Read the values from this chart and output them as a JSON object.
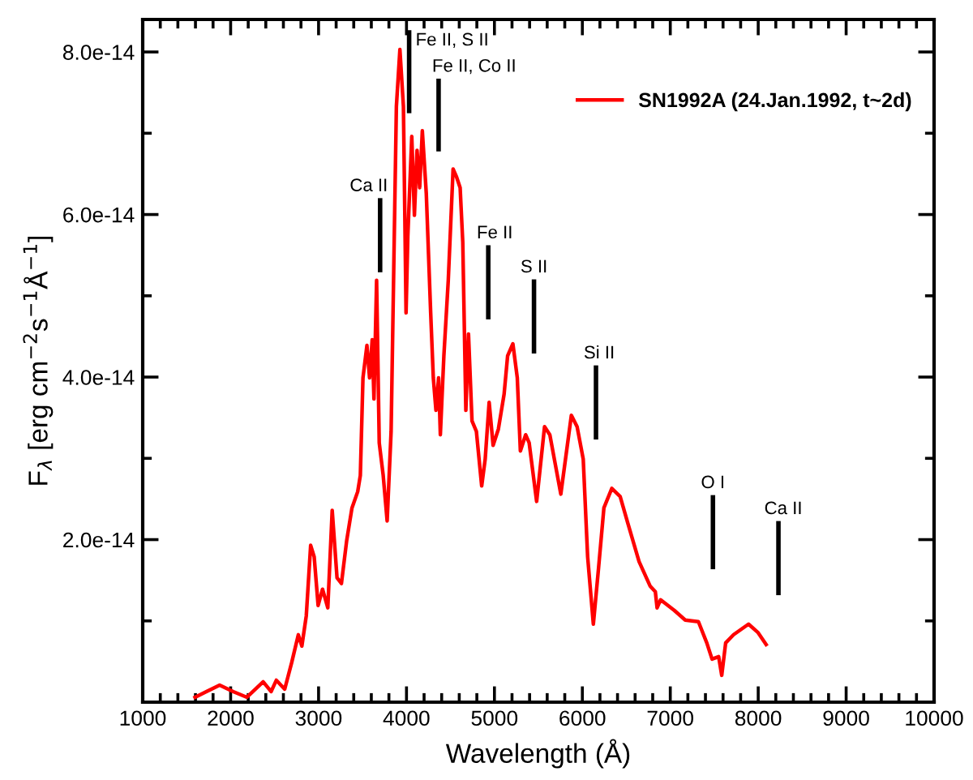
{
  "chart_data": {
    "type": "line",
    "xlabel": "Wavelength (Å)",
    "ylabel": "F$_{λ}$ [erg cm$^{−2}$s$^{−1}$Å$^{−1}$]",
    "xlim": [
      1000,
      10000
    ],
    "ylim": [
      0,
      8.4e-14
    ],
    "xticks": [
      1000,
      {
        "value": 1200,
        "label": null
      },
      {
        "value": 1400,
        "label": null
      },
      {
        "value": 1600,
        "label": null
      },
      {
        "value": 1800,
        "label": null
      },
      2000,
      {
        "value": 2200,
        "label": null
      },
      {
        "value": 2400,
        "label": null
      },
      {
        "value": 2600,
        "label": null
      },
      {
        "value": 2800,
        "label": null
      },
      3000,
      {
        "value": 3200,
        "label": null
      },
      {
        "value": 3400,
        "label": null
      },
      {
        "value": 3600,
        "label": null
      },
      {
        "value": 3800,
        "label": null
      },
      4000,
      {
        "value": 4200,
        "label": null
      },
      {
        "value": 4400,
        "label": null
      },
      {
        "value": 4600,
        "label": null
      },
      {
        "value": 4800,
        "label": null
      },
      5000,
      {
        "value": 5200,
        "label": null
      },
      {
        "value": 5400,
        "label": null
      },
      {
        "value": 5600,
        "label": null
      },
      {
        "value": 5800,
        "label": null
      },
      6000,
      {
        "value": 6200,
        "label": null
      },
      {
        "value": 6400,
        "label": null
      },
      {
        "value": 6600,
        "label": null
      },
      {
        "value": 6800,
        "label": null
      },
      7000,
      {
        "value": 7200,
        "label": null
      },
      {
        "value": 7400,
        "label": null
      },
      {
        "value": 7600,
        "label": null
      },
      {
        "value": 7800,
        "label": null
      },
      8000,
      {
        "value": 8200,
        "label": null
      },
      {
        "value": 8400,
        "label": null
      },
      {
        "value": 8600,
        "label": null
      },
      {
        "value": 8800,
        "label": null
      },
      9000,
      {
        "value": 9200,
        "label": null
      },
      {
        "value": 9400,
        "label": null
      },
      {
        "value": 9600,
        "label": null
      },
      {
        "value": 9800,
        "label": null
      },
      10000
    ],
    "yticks": [
      {
        "value": 1e-14,
        "label": null
      },
      {
        "value": 2e-14,
        "label": "2.0e-14"
      },
      {
        "value": 3e-14,
        "label": null
      },
      {
        "value": 4e-14,
        "label": "4.0e-14"
      },
      {
        "value": 5e-14,
        "label": null
      },
      {
        "value": 6e-14,
        "label": "6.0e-14"
      },
      {
        "value": 7e-14,
        "label": null
      },
      {
        "value": 8e-14,
        "label": "8.0e-14"
      }
    ],
    "grid": false,
    "legend": "top right",
    "line_style": "solid",
    "marker": "none",
    "series": [
      {
        "name": "SN1992A (24.Jan.1992, t~2d)",
        "color": "#ff0000",
        "x": [
          1595,
          1875,
          2030,
          2185,
          2370,
          2460,
          2520,
          2615,
          2695,
          2770,
          2810,
          2860,
          2910,
          2950,
          2995,
          3045,
          3105,
          3155,
          3210,
          3260,
          3320,
          3380,
          3445,
          3475,
          3505,
          3550,
          3580,
          3610,
          3630,
          3660,
          3690,
          3735,
          3780,
          3825,
          3855,
          3885,
          3925,
          3965,
          3995,
          4015,
          4060,
          4090,
          4120,
          4150,
          4180,
          4225,
          4275,
          4305,
          4335,
          4365,
          4385,
          4425,
          4475,
          4530,
          4570,
          4610,
          4640,
          4675,
          4705,
          4745,
          4795,
          4855,
          4895,
          4940,
          4985,
          5045,
          5110,
          5150,
          5210,
          5260,
          5295,
          5355,
          5395,
          5480,
          5570,
          5630,
          5755,
          5875,
          5940,
          6010,
          6060,
          6125,
          6185,
          6245,
          6335,
          6430,
          6520,
          6645,
          6770,
          6830,
          6850,
          6890,
          7045,
          7170,
          7320,
          7415,
          7475,
          7550,
          7585,
          7630,
          7720,
          7890,
          7995,
          8090
        ],
        "values": [
          6e-16,
          2.1e-15,
          1.3e-15,
          6e-16,
          2.5e-15,
          1.3e-15,
          2.7e-15,
          1.6e-15,
          4.9e-15,
          8.3e-15,
          6.9e-15,
          1.06e-14,
          1.93e-14,
          1.79e-14,
          1.19e-14,
          1.39e-14,
          1.16e-14,
          2.36e-14,
          1.53e-14,
          1.46e-14,
          1.99e-14,
          2.39e-14,
          2.59e-14,
          2.79e-14,
          3.99e-14,
          4.39e-14,
          3.99e-14,
          4.46e-14,
          3.73e-14,
          5.19e-14,
          3.19e-14,
          2.79e-14,
          2.23e-14,
          3.33e-14,
          5.33e-14,
          7.33e-14,
          8.03e-14,
          7.33e-14,
          4.79e-14,
          5.73e-14,
          6.96e-14,
          5.99e-14,
          6.79e-14,
          6.33e-14,
          7.03e-14,
          6.26e-14,
          4.79e-14,
          3.99e-14,
          3.59e-14,
          3.99e-14,
          3.29e-14,
          4.26e-14,
          5.19e-14,
          6.56e-14,
          6.46e-14,
          6.33e-14,
          5.66e-14,
          3.59e-14,
          4.53e-14,
          3.46e-14,
          3.33e-14,
          2.66e-14,
          2.99e-14,
          3.69e-14,
          3.16e-14,
          3.36e-14,
          3.79e-14,
          4.26e-14,
          4.41e-14,
          3.99e-14,
          3.09e-14,
          3.29e-14,
          3.19e-14,
          2.47e-14,
          3.39e-14,
          3.29e-14,
          2.56e-14,
          3.53e-14,
          3.39e-14,
          2.99e-14,
          1.79e-14,
          9.6e-15,
          1.66e-14,
          2.39e-14,
          2.63e-14,
          2.53e-14,
          2.19e-14,
          1.73e-14,
          1.43e-14,
          1.36e-14,
          1.16e-14,
          1.26e-14,
          1.13e-14,
          1.01e-14,
          9.9e-15,
          7.3e-15,
          5.3e-15,
          5.6e-15,
          3.3e-15,
          7.3e-15,
          8.3e-15,
          9.6e-15,
          8.6e-15,
          7.1e-15
        ]
      }
    ],
    "ref_lines": [
      {
        "axis": "x",
        "value": 3700,
        "label": "Ca II"
      },
      {
        "axis": "x",
        "value": 4030,
        "label": "Fe II, S II"
      },
      {
        "axis": "x",
        "value": 4365,
        "label": "Fe II, Co II"
      },
      {
        "axis": "x",
        "value": 4930,
        "label": "Fe II"
      },
      {
        "axis": "x",
        "value": 5450,
        "label": "S II"
      },
      {
        "axis": "x",
        "value": 6155,
        "label": "Si II"
      },
      {
        "axis": "x",
        "value": 7485,
        "label": "O I"
      },
      {
        "axis": "x",
        "value": 8230,
        "label": "Ca II"
      }
    ]
  }
}
